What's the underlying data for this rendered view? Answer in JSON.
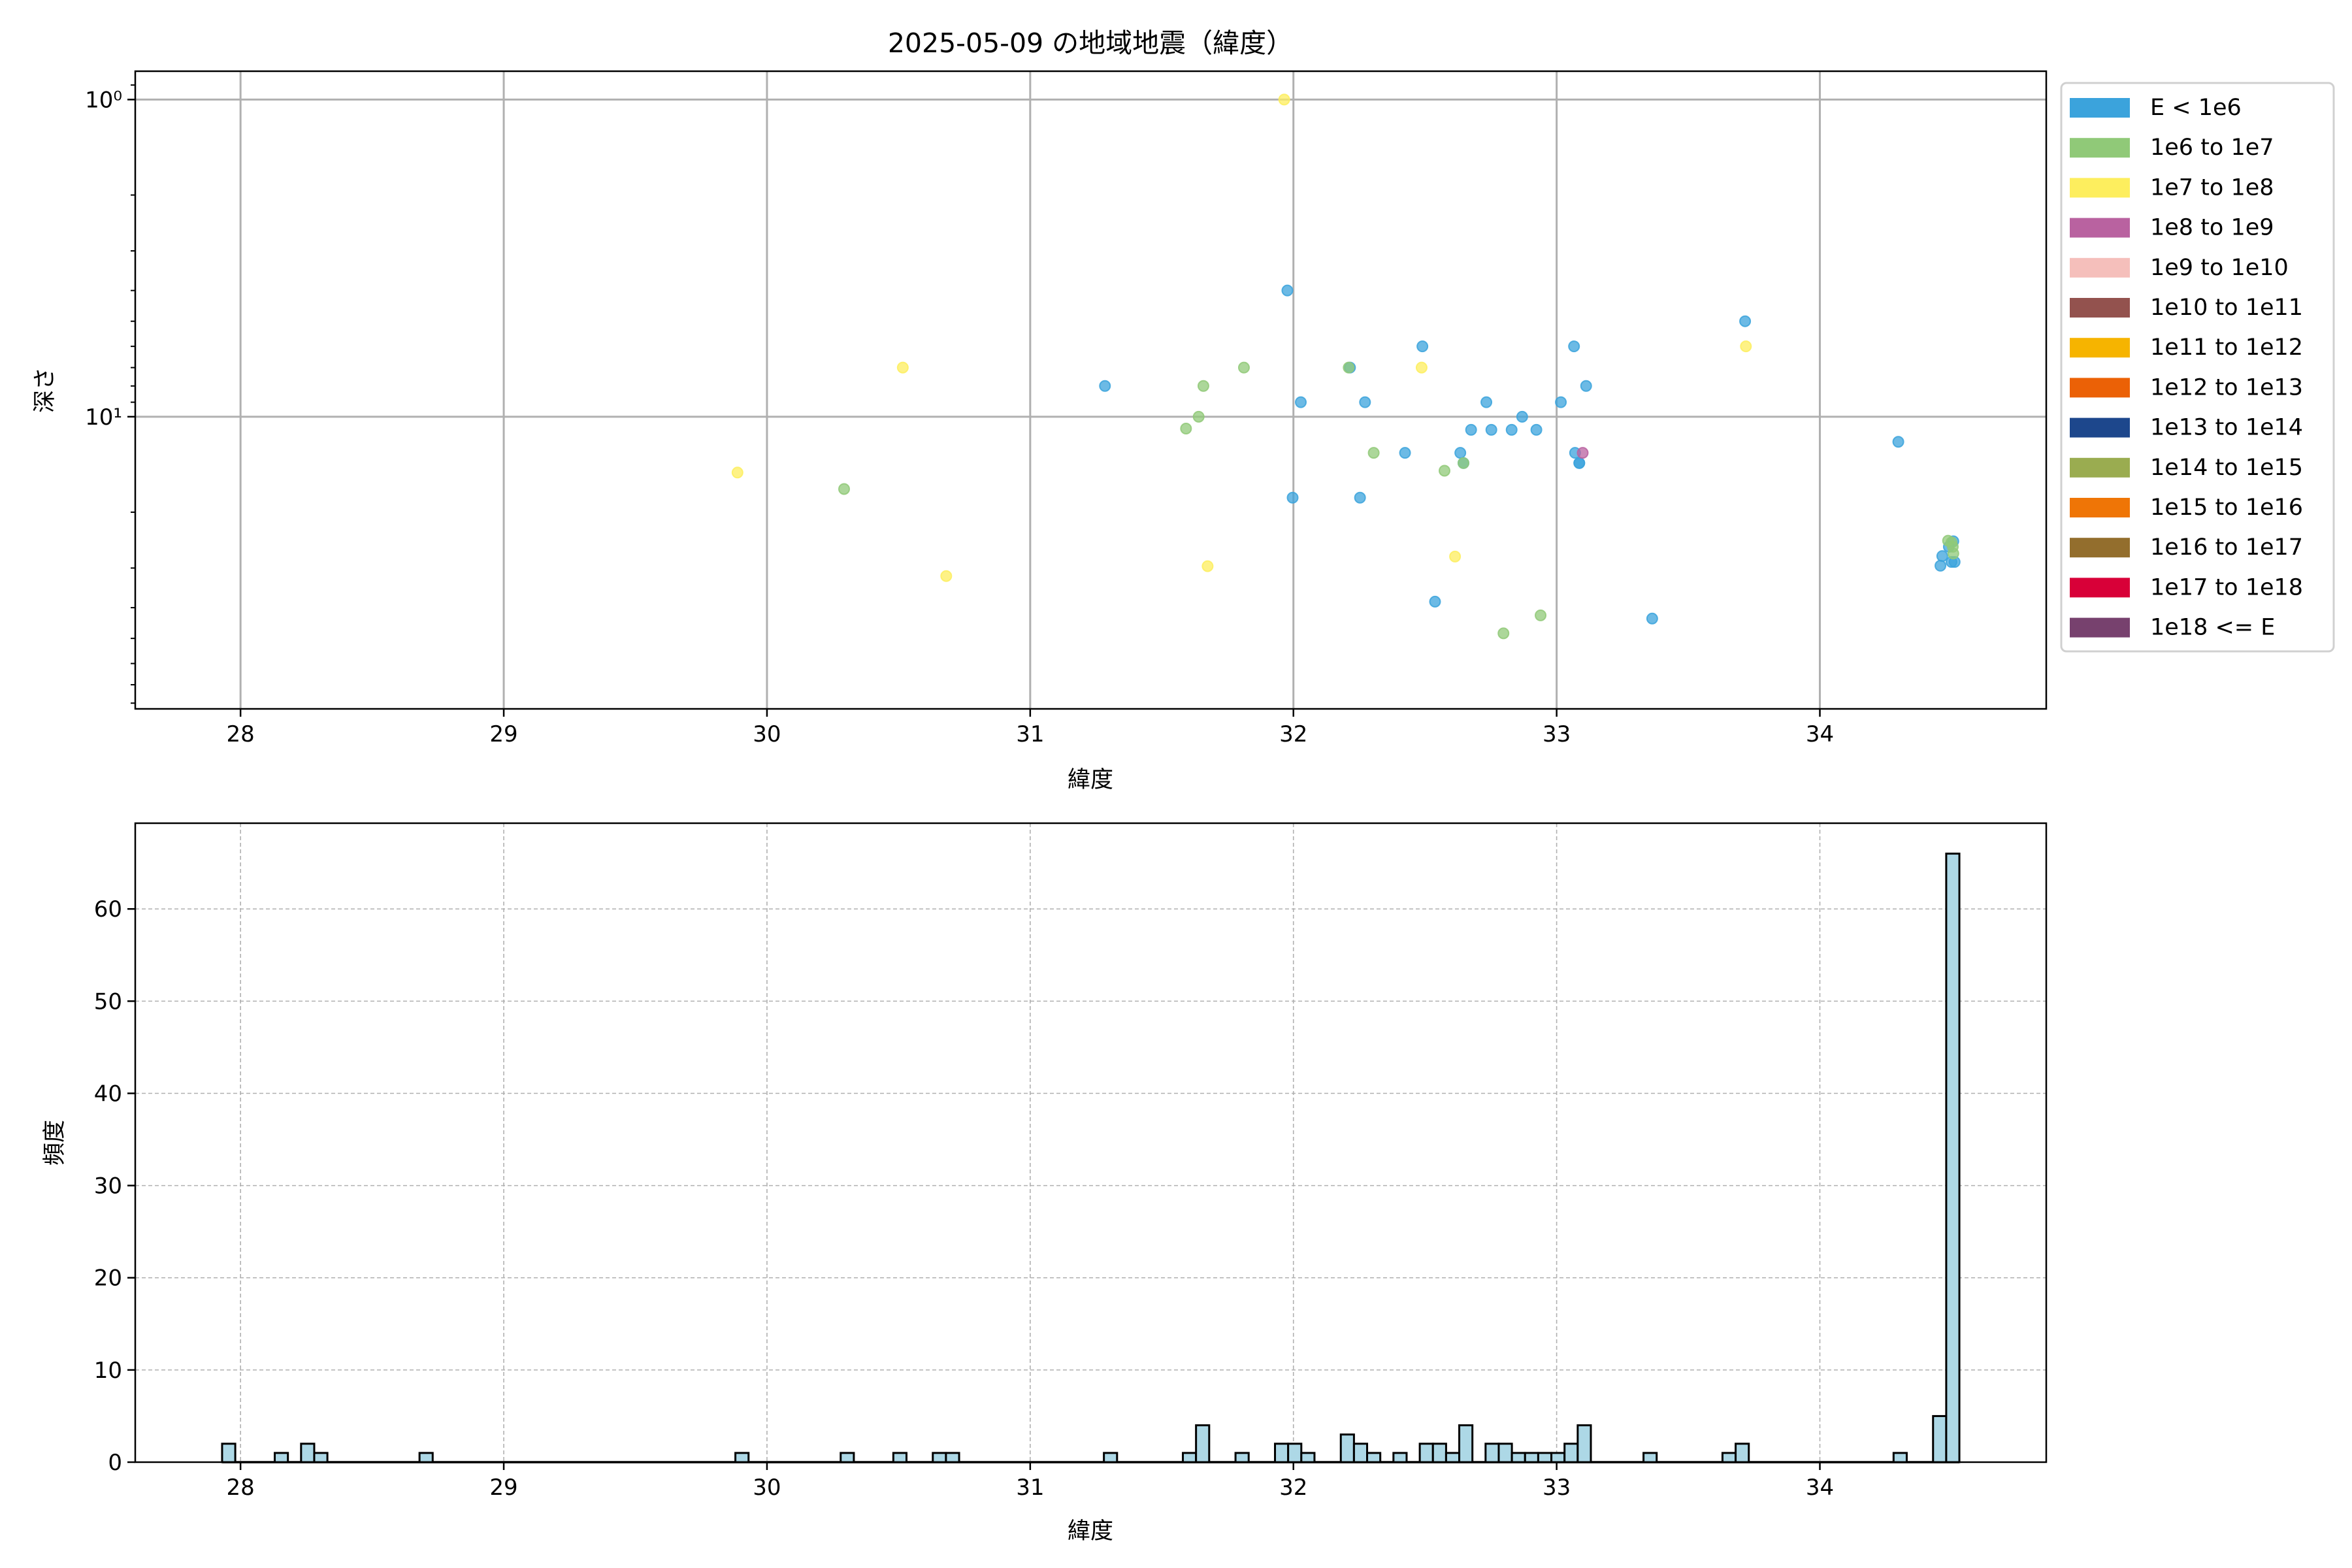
{
  "chart_data": [
    {
      "type": "scatter",
      "title": "2025-05-09 の地域地震（緯度）",
      "xlabel": "緯度",
      "ylabel": "深さ",
      "xlim": [
        27.6,
        34.86
      ],
      "ylim": [
        83.4,
        0.814
      ],
      "yscale": "log",
      "y_inverted": true,
      "grid": true,
      "x_ticks": [
        "28",
        "29",
        "30",
        "31",
        "32",
        "33",
        "34"
      ],
      "y_ticks": [
        {
          "value": 1,
          "label": "10⁰"
        },
        {
          "value": 10,
          "label": "10¹"
        }
      ],
      "legend_position": "outside-right",
      "legend": [
        {
          "label": "E < 1e6",
          "color": "#3ba3dc"
        },
        {
          "label": "1e6 to 1e7",
          "color": "#90c978"
        },
        {
          "label": "1e7 to 1e8",
          "color": "#fdee5e"
        },
        {
          "label": "1e8 to 1e9",
          "color": "#b962a0"
        },
        {
          "label": "1e9 to 1e10",
          "color": "#f5bfbb"
        },
        {
          "label": "1e10 to 1e11",
          "color": "#93524e"
        },
        {
          "label": "1e11 to 1e12",
          "color": "#f6b400"
        },
        {
          "label": "1e12 to 1e13",
          "color": "#eb6106"
        },
        {
          "label": "1e13 to 1e14",
          "color": "#1d478c"
        },
        {
          "label": "1e14 to 1e15",
          "color": "#9aac50"
        },
        {
          "label": "1e15 to 1e16",
          "color": "#ef7506"
        },
        {
          "label": "1e16 to 1e17",
          "color": "#936e2d"
        },
        {
          "label": "1e17 to 1e18",
          "color": "#d80038"
        },
        {
          "label": "1e18 <= E",
          "color": "#77416e"
        }
      ],
      "points": [
        {
          "lat": 31.977,
          "depth": 4.0,
          "class": 0
        },
        {
          "lat": 33.716,
          "depth": 5.0,
          "class": 0
        },
        {
          "lat": 32.49,
          "depth": 6.0,
          "class": 0
        },
        {
          "lat": 33.066,
          "depth": 6.0,
          "class": 0
        },
        {
          "lat": 32.215,
          "depth": 7.0,
          "class": 0
        },
        {
          "lat": 31.284,
          "depth": 8.0,
          "class": 0
        },
        {
          "lat": 33.112,
          "depth": 8.0,
          "class": 0
        },
        {
          "lat": 32.028,
          "depth": 9.0,
          "class": 0
        },
        {
          "lat": 32.272,
          "depth": 9.0,
          "class": 0
        },
        {
          "lat": 32.733,
          "depth": 9.0,
          "class": 0
        },
        {
          "lat": 33.016,
          "depth": 9.0,
          "class": 0
        },
        {
          "lat": 32.869,
          "depth": 10.0,
          "class": 0
        },
        {
          "lat": 32.675,
          "depth": 11.0,
          "class": 0
        },
        {
          "lat": 32.752,
          "depth": 11.0,
          "class": 0
        },
        {
          "lat": 32.829,
          "depth": 11.0,
          "class": 0
        },
        {
          "lat": 32.923,
          "depth": 11.0,
          "class": 0
        },
        {
          "lat": 32.424,
          "depth": 13.0,
          "class": 0
        },
        {
          "lat": 32.634,
          "depth": 13.0,
          "class": 0
        },
        {
          "lat": 33.07,
          "depth": 13.0,
          "class": 0
        },
        {
          "lat": 32.646,
          "depth": 14.0,
          "class": 0
        },
        {
          "lat": 33.086,
          "depth": 14.0,
          "class": 0
        },
        {
          "lat": 33.086,
          "depth": 14.0,
          "class": 0
        },
        {
          "lat": 31.997,
          "depth": 18.0,
          "class": 0
        },
        {
          "lat": 32.253,
          "depth": 18.0,
          "class": 0
        },
        {
          "lat": 32.538,
          "depth": 38.3,
          "class": 0
        },
        {
          "lat": 33.363,
          "depth": 43.3,
          "class": 0
        },
        {
          "lat": 34.298,
          "depth": 12.0,
          "class": 0
        },
        {
          "lat": 34.458,
          "depth": 29.5,
          "class": 0
        },
        {
          "lat": 34.465,
          "depth": 27.5,
          "class": 0
        },
        {
          "lat": 34.512,
          "depth": 28.7,
          "class": 0
        },
        {
          "lat": 34.5,
          "depth": 28.7,
          "class": 0
        },
        {
          "lat": 34.507,
          "depth": 24.7,
          "class": 0
        },
        {
          "lat": 34.49,
          "depth": 25.7,
          "class": 0
        },
        {
          "lat": 31.812,
          "depth": 7.0,
          "class": 1
        },
        {
          "lat": 32.21,
          "depth": 7.0,
          "class": 1
        },
        {
          "lat": 31.658,
          "depth": 8.0,
          "class": 1
        },
        {
          "lat": 31.64,
          "depth": 10.0,
          "class": 1
        },
        {
          "lat": 31.592,
          "depth": 10.9,
          "class": 1
        },
        {
          "lat": 32.305,
          "depth": 13.0,
          "class": 1
        },
        {
          "lat": 32.646,
          "depth": 14.0,
          "class": 1
        },
        {
          "lat": 32.574,
          "depth": 14.8,
          "class": 1
        },
        {
          "lat": 32.939,
          "depth": 42.3,
          "class": 1
        },
        {
          "lat": 32.798,
          "depth": 48.2,
          "class": 1
        },
        {
          "lat": 30.293,
          "depth": 16.9,
          "class": 1
        },
        {
          "lat": 34.487,
          "depth": 24.6,
          "class": 1
        },
        {
          "lat": 34.505,
          "depth": 25.7,
          "class": 1
        },
        {
          "lat": 34.507,
          "depth": 27.0,
          "class": 1
        },
        {
          "lat": 34.5,
          "depth": 24.9,
          "class": 1
        },
        {
          "lat": 31.965,
          "depth": 1.0,
          "class": 2
        },
        {
          "lat": 33.719,
          "depth": 6.0,
          "class": 2
        },
        {
          "lat": 32.487,
          "depth": 7.0,
          "class": 2
        },
        {
          "lat": 32.614,
          "depth": 27.6,
          "class": 2
        },
        {
          "lat": 31.674,
          "depth": 29.6,
          "class": 2
        },
        {
          "lat": 30.516,
          "depth": 7.0,
          "class": 2
        },
        {
          "lat": 29.888,
          "depth": 15.0,
          "class": 2
        },
        {
          "lat": 30.681,
          "depth": 31.8,
          "class": 2
        },
        {
          "lat": 33.099,
          "depth": 13.0,
          "class": 3
        }
      ]
    },
    {
      "type": "bar",
      "subtype": "histogram",
      "xlabel": "緯度",
      "ylabel": "頻度",
      "xlim": [
        27.6,
        34.86
      ],
      "ylim": [
        0,
        69.3
      ],
      "grid": "dashed",
      "bar_color": "#add8e6",
      "edge_color": "#000000",
      "data_range": [
        27.93,
        34.53
      ],
      "bin_width": 0.05,
      "x_ticks": [
        "28",
        "29",
        "30",
        "31",
        "32",
        "33",
        "34"
      ],
      "y_ticks": [
        "0",
        "10",
        "20",
        "30",
        "40",
        "50",
        "60"
      ],
      "bins": [
        {
          "left": 27.93,
          "count": 2
        },
        {
          "left": 28.13,
          "count": 1
        },
        {
          "left": 28.23,
          "count": 2
        },
        {
          "left": 28.28,
          "count": 1
        },
        {
          "left": 28.68,
          "count": 1
        },
        {
          "left": 29.88,
          "count": 1
        },
        {
          "left": 30.28,
          "count": 1
        },
        {
          "left": 30.48,
          "count": 1
        },
        {
          "left": 30.63,
          "count": 1
        },
        {
          "left": 30.68,
          "count": 1
        },
        {
          "left": 31.28,
          "count": 1
        },
        {
          "left": 31.58,
          "count": 1
        },
        {
          "left": 31.63,
          "count": 4
        },
        {
          "left": 31.78,
          "count": 1
        },
        {
          "left": 31.93,
          "count": 2
        },
        {
          "left": 31.98,
          "count": 2
        },
        {
          "left": 32.03,
          "count": 1
        },
        {
          "left": 32.18,
          "count": 3
        },
        {
          "left": 32.23,
          "count": 2
        },
        {
          "left": 32.28,
          "count": 1
        },
        {
          "left": 32.38,
          "count": 1
        },
        {
          "left": 32.48,
          "count": 2
        },
        {
          "left": 32.53,
          "count": 2
        },
        {
          "left": 32.58,
          "count": 1
        },
        {
          "left": 32.63,
          "count": 4
        },
        {
          "left": 32.73,
          "count": 2
        },
        {
          "left": 32.78,
          "count": 2
        },
        {
          "left": 32.83,
          "count": 1
        },
        {
          "left": 32.88,
          "count": 1
        },
        {
          "left": 32.93,
          "count": 1
        },
        {
          "left": 32.98,
          "count": 1
        },
        {
          "left": 33.03,
          "count": 2
        },
        {
          "left": 33.08,
          "count": 4
        },
        {
          "left": 33.33,
          "count": 1
        },
        {
          "left": 33.63,
          "count": 1
        },
        {
          "left": 33.68,
          "count": 2
        },
        {
          "left": 34.28,
          "count": 1
        },
        {
          "left": 34.43,
          "count": 5
        },
        {
          "left": 34.48,
          "count": 66
        }
      ]
    }
  ]
}
